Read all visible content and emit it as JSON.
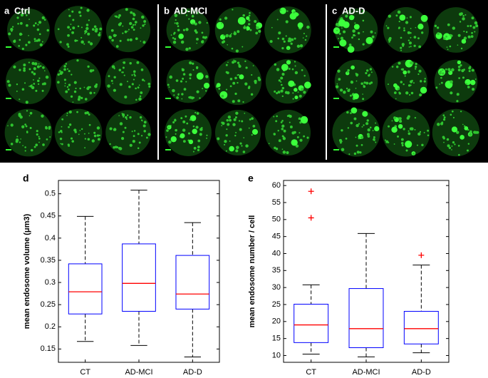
{
  "figure": {
    "panels": [
      {
        "letter": "a",
        "label": "Ctrl"
      },
      {
        "letter": "b",
        "label": "AD-MCI"
      },
      {
        "letter": "c",
        "label": "AD-D"
      }
    ]
  },
  "chart_data": [
    {
      "type": "box",
      "letter": "d",
      "ylabel": "mean endosome volume (μm3)",
      "categories": [
        "CT",
        "AD-MCI",
        "AD-D"
      ],
      "box_color": "#0000ff",
      "median_color": "#ff0000",
      "outlier_color": "#ff0000",
      "boxes": [
        {
          "min": 0.167,
          "q1": 0.229,
          "median": 0.279,
          "q3": 0.342,
          "max": 0.449,
          "outliers": []
        },
        {
          "min": 0.158,
          "q1": 0.235,
          "median": 0.298,
          "q3": 0.387,
          "max": 0.508,
          "outliers": []
        },
        {
          "min": 0.132,
          "q1": 0.24,
          "median": 0.274,
          "q3": 0.361,
          "max": 0.435,
          "outliers": []
        }
      ],
      "ylim": [
        0.12,
        0.53
      ],
      "yticks": [
        0.15,
        0.2,
        0.25,
        0.3,
        0.35,
        0.4,
        0.45,
        0.5
      ]
    },
    {
      "type": "box",
      "letter": "e",
      "ylabel": "mean endosome number / cell",
      "categories": [
        "CT",
        "AD-MCI",
        "AD-D"
      ],
      "box_color": "#0000ff",
      "median_color": "#ff0000",
      "outlier_color": "#ff0000",
      "boxes": [
        {
          "min": 10.4,
          "q1": 13.8,
          "median": 19,
          "q3": 25.1,
          "max": 30.8,
          "outliers": [
            58.3,
            50.5
          ]
        },
        {
          "min": 9.6,
          "q1": 12.3,
          "median": 17.9,
          "q3": 29.7,
          "max": 45.9,
          "outliers": []
        },
        {
          "min": 10.8,
          "q1": 13.4,
          "median": 17.9,
          "q3": 23,
          "max": 36.6,
          "outliers": [
            39.5
          ]
        }
      ],
      "ylim": [
        8,
        61.5
      ],
      "yticks": [
        10,
        15,
        20,
        25,
        30,
        35,
        40,
        45,
        50,
        55,
        60
      ]
    }
  ]
}
